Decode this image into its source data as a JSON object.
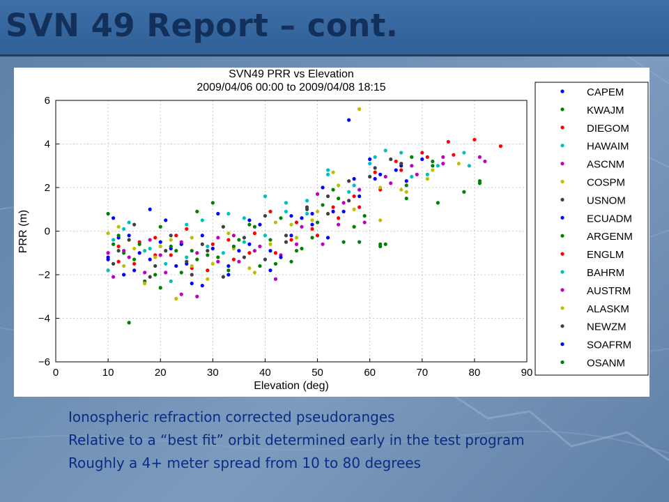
{
  "slide": {
    "title": "SVN 49 Report – cont.",
    "bullets": [
      "Ionospheric refraction corrected pseudoranges",
      "Relative to a “best fit” orbit determined early in the test program",
      "Roughly a 4+ meter spread from 10 to 80 degrees"
    ],
    "colors": {
      "title_bar": "#3e6fa6",
      "title_text": "#12305a",
      "bullet_text": "#0a2c86"
    }
  },
  "chart_data": {
    "type": "scatter",
    "title": "SVN49 PRR vs Elevation",
    "subtitle": "2009/04/06 00:00 to 2009/04/08 18:15",
    "xlabel": "Elevation (deg)",
    "ylabel": "PRR (m)",
    "xlim": [
      0,
      90
    ],
    "ylim": [
      -6,
      6
    ],
    "xticks": [
      "0",
      "10",
      "20",
      "30",
      "40",
      "50",
      "60",
      "70",
      "80",
      "90"
    ],
    "yticks": [
      "−6",
      "−4",
      "−2",
      "0",
      "2",
      "4",
      "6"
    ],
    "grid": true,
    "legend_position": "right",
    "series": [
      {
        "name": "CAPEM",
        "color": "#0000ff",
        "points": [
          [
            10,
            -1.2
          ],
          [
            12,
            -0.3
          ],
          [
            15,
            -1.8
          ],
          [
            18,
            1.0
          ],
          [
            22,
            -0.8
          ],
          [
            25,
            -1.5
          ],
          [
            28,
            -0.2
          ],
          [
            33,
            -2.0
          ],
          [
            37,
            0.5
          ],
          [
            41,
            -0.9
          ],
          [
            45,
            -0.2
          ],
          [
            49,
            0.8
          ],
          [
            52,
            -0.3
          ],
          [
            56,
            5.1
          ],
          [
            58,
            1.6
          ],
          [
            61,
            2.4
          ],
          [
            66,
            3.0
          ],
          [
            70,
            3.3
          ]
        ]
      },
      {
        "name": "KWAJM",
        "color": "#008000",
        "points": [
          [
            11,
            -0.6
          ],
          [
            14,
            -4.2
          ],
          [
            17,
            -2.3
          ],
          [
            20,
            0.2
          ],
          [
            24,
            -1.9
          ],
          [
            27,
            0.9
          ],
          [
            31,
            -1.2
          ],
          [
            35,
            -0.4
          ],
          [
            39,
            -1.6
          ],
          [
            43,
            0.6
          ],
          [
            47,
            -0.8
          ],
          [
            51,
            1.2
          ],
          [
            55,
            -0.5
          ],
          [
            59,
            0.7
          ],
          [
            63,
            -0.6
          ],
          [
            67,
            2.1
          ],
          [
            72,
            3.2
          ],
          [
            81,
            2.3
          ]
        ]
      },
      {
        "name": "DIEGOM",
        "color": "#ff0000",
        "points": [
          [
            12,
            -1.4
          ],
          [
            16,
            -0.5
          ],
          [
            19,
            -1.1
          ],
          [
            23,
            -0.2
          ],
          [
            26,
            -1.7
          ],
          [
            30,
            -0.6
          ],
          [
            34,
            -1.3
          ],
          [
            38,
            -0.1
          ],
          [
            42,
            -1.0
          ],
          [
            46,
            0.4
          ],
          [
            50,
            -0.2
          ],
          [
            54,
            0.6
          ],
          [
            58,
            1.1
          ],
          [
            62,
            1.9
          ],
          [
            66,
            2.8
          ],
          [
            71,
            3.4
          ],
          [
            75,
            4.1
          ],
          [
            80,
            4.2
          ],
          [
            85,
            3.9
          ]
        ]
      },
      {
        "name": "HAWAIM",
        "color": "#00bfbf",
        "points": [
          [
            10,
            -1.8
          ],
          [
            13,
            0.1
          ],
          [
            17,
            -0.9
          ],
          [
            21,
            -1.5
          ],
          [
            25,
            0.3
          ],
          [
            29,
            -0.7
          ],
          [
            33,
            0.8
          ],
          [
            36,
            -0.5
          ],
          [
            40,
            1.6
          ],
          [
            44,
            0.9
          ],
          [
            48,
            1.4
          ],
          [
            52,
            2.6
          ],
          [
            56,
            1.8
          ],
          [
            60,
            3.1
          ],
          [
            63,
            3.7
          ],
          [
            68,
            2.5
          ],
          [
            73,
            3.0
          ],
          [
            78,
            3.6
          ]
        ]
      },
      {
        "name": "ASCNM",
        "color": "#bf00bf",
        "points": [
          [
            11,
            -2.1
          ],
          [
            14,
            -1.2
          ],
          [
            18,
            -0.4
          ],
          [
            21,
            -1.9
          ],
          [
            24,
            -2.9
          ],
          [
            27,
            -1.0
          ],
          [
            31,
            -0.3
          ],
          [
            35,
            -1.4
          ],
          [
            39,
            -0.7
          ],
          [
            43,
            -1.1
          ],
          [
            47,
            0.2
          ],
          [
            51,
            -0.6
          ],
          [
            55,
            1.3
          ],
          [
            59,
            0.4
          ],
          [
            64,
            2.2
          ],
          [
            69,
            2.6
          ],
          [
            74,
            3.1
          ],
          [
            82,
            3.2
          ]
        ]
      },
      {
        "name": "COSPM",
        "color": "#bfbf00",
        "points": [
          [
            10,
            -0.1
          ],
          [
            13,
            -1.6
          ],
          [
            17,
            -2.4
          ],
          [
            20,
            -0.7
          ],
          [
            23,
            -3.1
          ],
          [
            26,
            -0.3
          ],
          [
            30,
            -1.5
          ],
          [
            34,
            -0.8
          ],
          [
            38,
            -1.9
          ],
          [
            42,
            0.4
          ],
          [
            46,
            -0.3
          ],
          [
            50,
            0.9
          ],
          [
            54,
            2.1
          ],
          [
            58,
            5.6
          ],
          [
            62,
            0.5
          ],
          [
            67,
            1.8
          ],
          [
            71,
            2.4
          ]
        ]
      },
      {
        "name": "USNOM",
        "color": "#404040",
        "points": [
          [
            12,
            -0.9
          ],
          [
            15,
            0.3
          ],
          [
            19,
            -1.6
          ],
          [
            22,
            -0.2
          ],
          [
            26,
            -2.0
          ],
          [
            29,
            -0.9
          ],
          [
            32,
            0.2
          ],
          [
            36,
            -1.2
          ],
          [
            40,
            0.7
          ],
          [
            44,
            -0.5
          ],
          [
            48,
            1.0
          ],
          [
            52,
            1.6
          ],
          [
            56,
            2.3
          ],
          [
            61,
            2.9
          ],
          [
            66,
            3.1
          ]
        ]
      },
      {
        "name": "ECUADM",
        "color": "#0000ff",
        "points": [
          [
            11,
            0.6
          ],
          [
            14,
            -0.2
          ],
          [
            18,
            -1.3
          ],
          [
            21,
            0.5
          ],
          [
            24,
            -0.6
          ],
          [
            28,
            -2.5
          ],
          [
            31,
            0.8
          ],
          [
            35,
            -0.9
          ],
          [
            39,
            0.3
          ],
          [
            43,
            -1.2
          ],
          [
            47,
            0.6
          ],
          [
            51,
            2.0
          ],
          [
            55,
            0.9
          ],
          [
            60,
            3.3
          ],
          [
            65,
            2.8
          ]
        ]
      },
      {
        "name": "ARGENM",
        "color": "#008000",
        "points": [
          [
            10,
            0.8
          ],
          [
            13,
            -1.0
          ],
          [
            16,
            -0.6
          ],
          [
            20,
            -2.6
          ],
          [
            23,
            -0.9
          ],
          [
            27,
            -1.3
          ],
          [
            30,
            1.3
          ],
          [
            34,
            -0.7
          ],
          [
            38,
            0.2
          ],
          [
            42,
            -1.5
          ],
          [
            46,
            -0.9
          ],
          [
            50,
            0.4
          ],
          [
            54,
            1.5
          ],
          [
            58,
            -0.5
          ],
          [
            62,
            -0.6
          ],
          [
            68,
            3.4
          ],
          [
            73,
            1.3
          ]
        ]
      },
      {
        "name": "ENGLM",
        "color": "#ff0000",
        "points": [
          [
            12,
            -0.7
          ],
          [
            15,
            -1.5
          ],
          [
            19,
            -0.3
          ],
          [
            22,
            -1.1
          ],
          [
            25,
            0.1
          ],
          [
            29,
            -1.8
          ],
          [
            33,
            -0.4
          ],
          [
            37,
            -1.0
          ],
          [
            41,
            0.9
          ],
          [
            45,
            -0.4
          ],
          [
            49,
            0.1
          ],
          [
            53,
            1.1
          ],
          [
            57,
            1.6
          ],
          [
            61,
            2.7
          ],
          [
            65,
            3.2
          ],
          [
            70,
            3.6
          ],
          [
            76,
            3.5
          ]
        ]
      },
      {
        "name": "BAHRM",
        "color": "#00bfbf",
        "points": [
          [
            11,
            -0.4
          ],
          [
            14,
            0.4
          ],
          [
            18,
            -0.8
          ],
          [
            22,
            -2.3
          ],
          [
            25,
            -1.2
          ],
          [
            28,
            0.5
          ],
          [
            32,
            -1.0
          ],
          [
            36,
            0.6
          ],
          [
            40,
            -0.2
          ],
          [
            44,
            1.3
          ],
          [
            48,
            0.8
          ],
          [
            52,
            2.8
          ],
          [
            57,
            2.1
          ],
          [
            61,
            3.4
          ],
          [
            66,
            3.6
          ],
          [
            71,
            2.6
          ],
          [
            79,
            3.0
          ]
        ]
      },
      {
        "name": "AUSTRM",
        "color": "#bf00bf",
        "points": [
          [
            10,
            -1.0
          ],
          [
            13,
            -0.9
          ],
          [
            17,
            -1.9
          ],
          [
            20,
            -1.1
          ],
          [
            24,
            -0.5
          ],
          [
            27,
            -3.0
          ],
          [
            31,
            -1.4
          ],
          [
            34,
            -0.2
          ],
          [
            38,
            -0.9
          ],
          [
            42,
            -2.2
          ],
          [
            46,
            -0.6
          ],
          [
            50,
            1.7
          ],
          [
            54,
            0.3
          ],
          [
            58,
            1.9
          ],
          [
            63,
            2.5
          ],
          [
            68,
            3.0
          ],
          [
            74,
            3.4
          ],
          [
            81,
            3.4
          ]
        ]
      },
      {
        "name": "ALASKM",
        "color": "#bfbf00",
        "points": [
          [
            12,
            0.2
          ],
          [
            15,
            -0.8
          ],
          [
            19,
            -1.2
          ],
          [
            22,
            -0.4
          ],
          [
            26,
            -1.6
          ],
          [
            29,
            -2.2
          ],
          [
            33,
            -0.1
          ],
          [
            37,
            -1.7
          ],
          [
            41,
            -0.6
          ],
          [
            45,
            0.3
          ],
          [
            49,
            0.5
          ],
          [
            53,
            2.7
          ],
          [
            57,
            1.0
          ],
          [
            62,
            2.0
          ],
          [
            66,
            1.9
          ],
          [
            72,
            2.8
          ],
          [
            77,
            3.1
          ]
        ]
      },
      {
        "name": "NEWZM",
        "color": "#404040",
        "points": [
          [
            11,
            -1.5
          ],
          [
            14,
            -0.4
          ],
          [
            18,
            -2.1
          ],
          [
            21,
            -0.9
          ],
          [
            25,
            -1.4
          ],
          [
            28,
            -0.6
          ],
          [
            32,
            -2.1
          ],
          [
            36,
            -0.3
          ],
          [
            40,
            -1.3
          ],
          [
            44,
            -0.2
          ],
          [
            48,
            1.1
          ],
          [
            52,
            0.8
          ],
          [
            56,
            1.4
          ],
          [
            60,
            2.5
          ],
          [
            64,
            3.3
          ]
        ]
      },
      {
        "name": "SOAFRM",
        "color": "#0000ff",
        "points": [
          [
            10,
            -1.3
          ],
          [
            13,
            -2.0
          ],
          [
            16,
            -1.0
          ],
          [
            20,
            -0.5
          ],
          [
            23,
            -1.6
          ],
          [
            26,
            -2.4
          ],
          [
            30,
            -0.8
          ],
          [
            33,
            -1.6
          ],
          [
            37,
            -0.6
          ],
          [
            41,
            -1.8
          ],
          [
            45,
            0.7
          ],
          [
            49,
            0.3
          ],
          [
            53,
            0.9
          ],
          [
            57,
            2.4
          ],
          [
            62,
            2.6
          ],
          [
            67,
            2.3
          ]
        ]
      },
      {
        "name": "OSANM",
        "color": "#008000",
        "points": [
          [
            12,
            -0.2
          ],
          [
            15,
            -1.3
          ],
          [
            19,
            -2.0
          ],
          [
            22,
            -0.7
          ],
          [
            26,
            -0.9
          ],
          [
            29,
            -1.1
          ],
          [
            33,
            -1.8
          ],
          [
            37,
            0.3
          ],
          [
            41,
            -0.4
          ],
          [
            45,
            -1.4
          ],
          [
            49,
            -0.3
          ],
          [
            53,
            1.9
          ],
          [
            57,
            0.2
          ],
          [
            62,
            -0.7
          ],
          [
            67,
            1.5
          ],
          [
            72,
            3.0
          ],
          [
            78,
            1.8
          ],
          [
            81,
            2.2
          ]
        ]
      }
    ]
  }
}
